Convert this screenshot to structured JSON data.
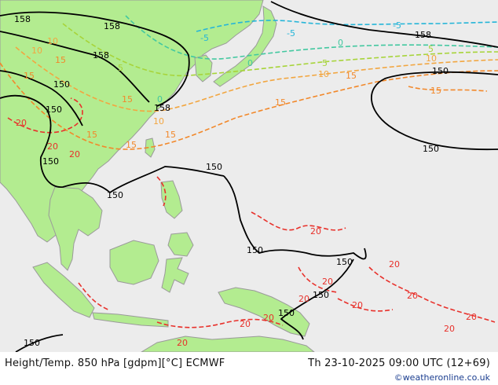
{
  "header": {
    "title": "Height/Temp. 850 hPa [gdpm][°C] ECMWF",
    "valid": "Th 23-10-2025 09:00 UTC (12+69)",
    "credit": "©weatheronline.co.uk"
  },
  "colors": {
    "sea": "#ececec",
    "land": "#b3ec90",
    "coast": "#9a9a9a",
    "height": "#000000",
    "iso_20": "#e8312b",
    "iso_15": "#f2882a",
    "iso_10": "#f2a640",
    "iso_5": "#a7d43a",
    "iso_0": "#43c8a0",
    "iso_m5": "#25b5d8"
  },
  "height_labels": [
    "158",
    "158",
    "158",
    "150",
    "150",
    "150",
    "150",
    "158",
    "158",
    "150",
    "150",
    "150",
    "150",
    "150",
    "150",
    "150",
    "150"
  ],
  "temp_labels": [
    "15",
    "15",
    "10",
    "15",
    "15",
    "20",
    "20",
    "20",
    "15",
    "10",
    "5",
    "0",
    "-5",
    "15",
    "15",
    "10",
    "5",
    "0",
    "-5",
    "15",
    "10",
    "5",
    "0",
    "-5",
    "15",
    "10",
    "20",
    "20",
    "20",
    "20",
    "20",
    "20",
    "20",
    "20",
    "20",
    "20",
    "20"
  ]
}
